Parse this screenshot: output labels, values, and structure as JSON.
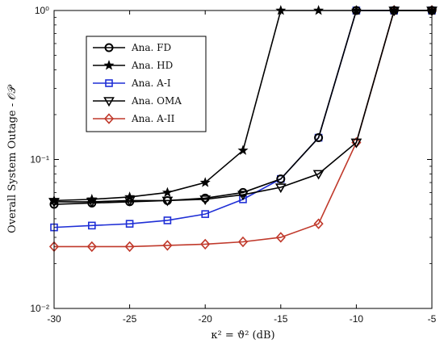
{
  "chart_data": {
    "type": "line",
    "x_scale": "linear",
    "y_scale": "log",
    "xlim": [
      -30,
      -5
    ],
    "ylim": [
      0.01,
      1
    ],
    "grid": false,
    "legend_position": "top-left",
    "xlabel": "κ² = ϑ² (dB)",
    "ylabel": "Overall System Outage - 𝒪𝒫",
    "x_ticks": [
      "-30",
      "-25",
      "-20",
      "-15",
      "-10",
      "-5"
    ],
    "y_ticks": [
      {
        "value": 1,
        "label": "10⁰"
      },
      {
        "value": 0.1,
        "label": "10⁻¹"
      },
      {
        "value": 0.01,
        "label": "10⁻²"
      }
    ],
    "x": [
      -30,
      -27.5,
      -25,
      -22.5,
      -20,
      -17.5,
      -15,
      -12.5,
      -10,
      -7.5,
      -5
    ],
    "series": [
      {
        "name": "Ana. FD",
        "color": "#000000",
        "marker": "circle",
        "values": [
          0.05,
          0.051,
          0.052,
          0.053,
          0.055,
          0.06,
          0.074,
          0.14,
          1.0,
          1.0,
          1.0
        ]
      },
      {
        "name": "Ana. HD",
        "color": "#000000",
        "marker": "star",
        "values": [
          0.053,
          0.054,
          0.056,
          0.06,
          0.07,
          0.115,
          1.0,
          1.0,
          1.0,
          1.0,
          1.0
        ]
      },
      {
        "name": "Ana. A-I",
        "color": "#1f2fd6",
        "marker": "square",
        "values": [
          0.035,
          0.036,
          0.037,
          0.039,
          0.043,
          0.054,
          0.074,
          0.14,
          1.0,
          1.0,
          1.0
        ]
      },
      {
        "name": "Ana. OMA",
        "color": "#000000",
        "marker": "triangle-down",
        "values": [
          0.052,
          0.052,
          0.053,
          0.053,
          0.054,
          0.058,
          0.065,
          0.08,
          0.13,
          1.0,
          1.0
        ]
      },
      {
        "name": "Ana. A-II",
        "color": "#c0392b",
        "marker": "diamond",
        "values": [
          0.026,
          0.026,
          0.026,
          0.0265,
          0.027,
          0.028,
          0.03,
          0.037,
          0.13,
          1.0,
          1.0
        ]
      }
    ]
  }
}
